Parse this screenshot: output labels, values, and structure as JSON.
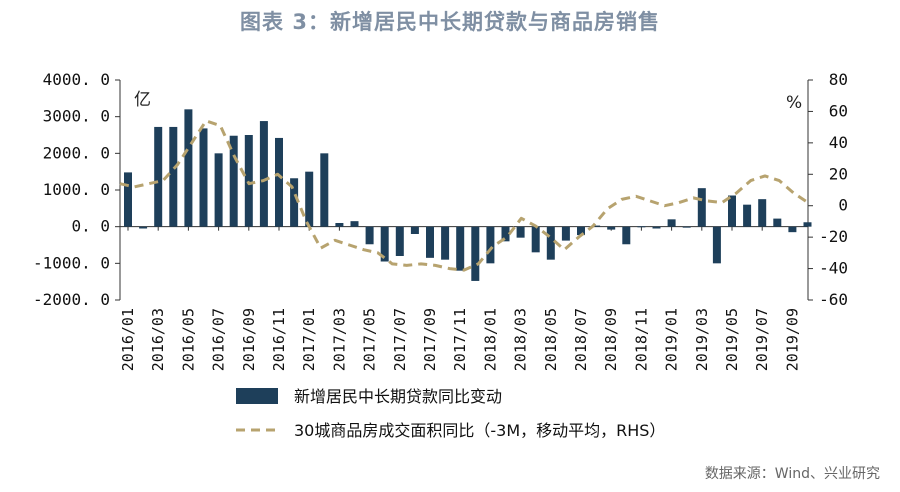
{
  "title": "图表 3：新增居民中长期贷款与商品房销售",
  "source": "数据来源：Wind、兴业研究",
  "chart_data": {
    "type": "bar+line",
    "left_unit": "亿",
    "right_unit": "%",
    "left_axis": {
      "min": -2000,
      "max": 4000,
      "ticks": [
        "4000. 0",
        "3000. 0",
        "2000. 0",
        "1000. 0",
        "0. 0",
        "-1000. 0",
        "-2000. 0"
      ],
      "tick_values": [
        4000,
        3000,
        2000,
        1000,
        0,
        -1000,
        -2000
      ]
    },
    "right_axis": {
      "min": -60,
      "max": 80,
      "ticks": [
        "80",
        "60",
        "40",
        "20",
        "0",
        "-20",
        "-40",
        "-60"
      ],
      "tick_values": [
        80,
        60,
        40,
        20,
        0,
        -20,
        -40,
        -60
      ]
    },
    "x_tick_labels": [
      "2016/01",
      "2016/03",
      "2016/05",
      "2016/07",
      "2016/09",
      "2016/11",
      "2017/01",
      "2017/03",
      "2017/05",
      "2017/07",
      "2017/09",
      "2017/11",
      "2018/01",
      "2018/03",
      "2018/05",
      "2018/07",
      "2018/09",
      "2018/11",
      "2019/01",
      "2019/03",
      "2019/05",
      "2019/07",
      "2019/09"
    ],
    "grid": false,
    "legend_position": "bottom",
    "colors": {
      "bar": "#1e3f5a",
      "line": "#b7a36f"
    },
    "series": [
      {
        "name": "新增居民中长期贷款同比变动",
        "type": "bar",
        "axis": "left",
        "values": [
          1480,
          -50,
          2720,
          2720,
          3200,
          2680,
          2000,
          2480,
          2500,
          2880,
          2420,
          1320,
          1500,
          2000,
          100,
          150,
          -480,
          -950,
          -800,
          -200,
          -850,
          -900,
          -1200,
          -1480,
          -1000,
          -400,
          -300,
          -700,
          -900,
          -380,
          -230,
          30,
          -80,
          -480,
          10,
          -50,
          200,
          -20,
          1050,
          -1000,
          850,
          600,
          750,
          220,
          -150,
          120
        ]
      },
      {
        "name": "30城商品房成交面积同比（-3M，移动平均，RHS）",
        "type": "line",
        "axis": "right",
        "values": [
          14,
          12,
          14,
          16,
          26,
          40,
          54,
          51,
          31,
          14,
          16,
          20,
          12,
          -10,
          -27,
          -22,
          -25,
          -28,
          -30,
          -37,
          -38,
          -37,
          -38,
          -40,
          -41,
          -37,
          -26,
          -20,
          -8,
          -13,
          -20,
          -28,
          -20,
          -13,
          -2,
          4,
          6,
          3,
          0,
          2,
          5,
          3,
          2,
          8,
          16,
          19,
          16,
          8,
          2
        ]
      }
    ]
  }
}
